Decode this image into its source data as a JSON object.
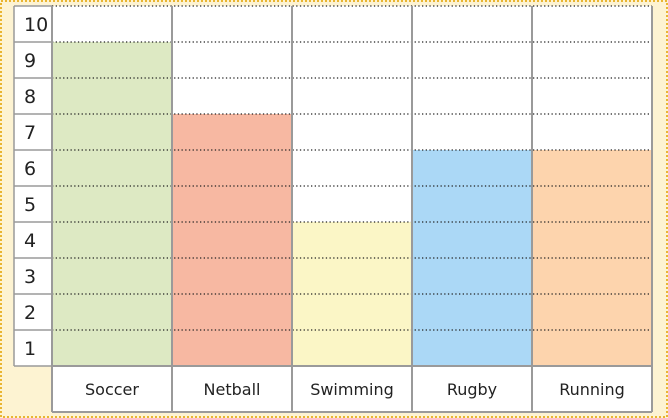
{
  "chart_data": {
    "type": "bar",
    "title": "",
    "xlabel": "",
    "ylabel": "",
    "categories": [
      "Soccer",
      "Netball",
      "Swimming",
      "Rugby",
      "Running"
    ],
    "values": [
      9,
      7,
      4,
      6,
      6
    ],
    "bar_colors": [
      "#dde9c3",
      "#f7b8a2",
      "#fbf6c6",
      "#abd8f6",
      "#fdd4ad"
    ],
    "y_ticks": [
      "1",
      "2",
      "3",
      "4",
      "5",
      "6",
      "7",
      "8",
      "9",
      "10"
    ],
    "ylim": [
      0,
      10
    ],
    "grid": "dotted horizontal lines at each unit",
    "legend": "none"
  },
  "colors": {
    "background": "#fdf3d2",
    "border": "#e9b531",
    "cell_border": "#9a9a9a",
    "grid_dots": "#222222",
    "cell_fill": "#ffffff"
  }
}
